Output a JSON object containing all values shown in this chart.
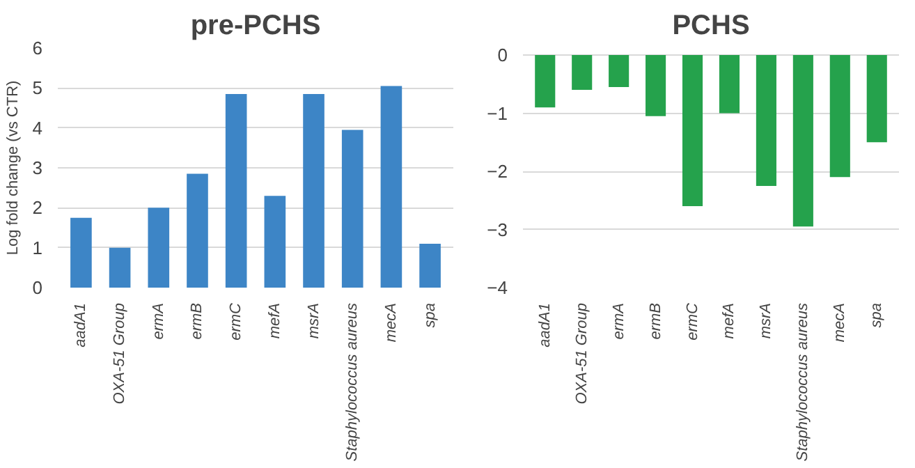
{
  "chart_data": [
    {
      "type": "bar",
      "title": "pre-PCHS",
      "ylabel": "Log fold change (vs CTR)",
      "categories": [
        "aadA1",
        "OXA-51 Group",
        "ermA",
        "ermB",
        "ermC",
        "mefA",
        "msrA",
        "Staphylococcus aureus",
        "mecA",
        "spa"
      ],
      "values": [
        1.75,
        1.0,
        2.0,
        2.85,
        4.85,
        2.3,
        4.85,
        3.95,
        5.05,
        1.1
      ],
      "color": "#3d85c6",
      "ylim": [
        0,
        6
      ],
      "yticks": [
        0,
        1,
        2,
        3,
        4,
        5,
        6
      ],
      "grid": "y"
    },
    {
      "type": "bar",
      "title": "PCHS",
      "categories": [
        "aadA1",
        "OXA-51 Group",
        "ermA",
        "ermB",
        "ermC",
        "mefA",
        "msrA",
        "Staphylococcus aureus",
        "mecA",
        "spa"
      ],
      "values": [
        -0.9,
        -0.6,
        -0.55,
        -1.05,
        -2.6,
        -1.0,
        -2.25,
        -2.95,
        -2.1,
        -1.5
      ],
      "color": "#25a24c",
      "ylim": [
        -4,
        0
      ],
      "yticks": [
        -4,
        -3,
        -2,
        -1,
        0
      ],
      "grid": "y"
    }
  ]
}
